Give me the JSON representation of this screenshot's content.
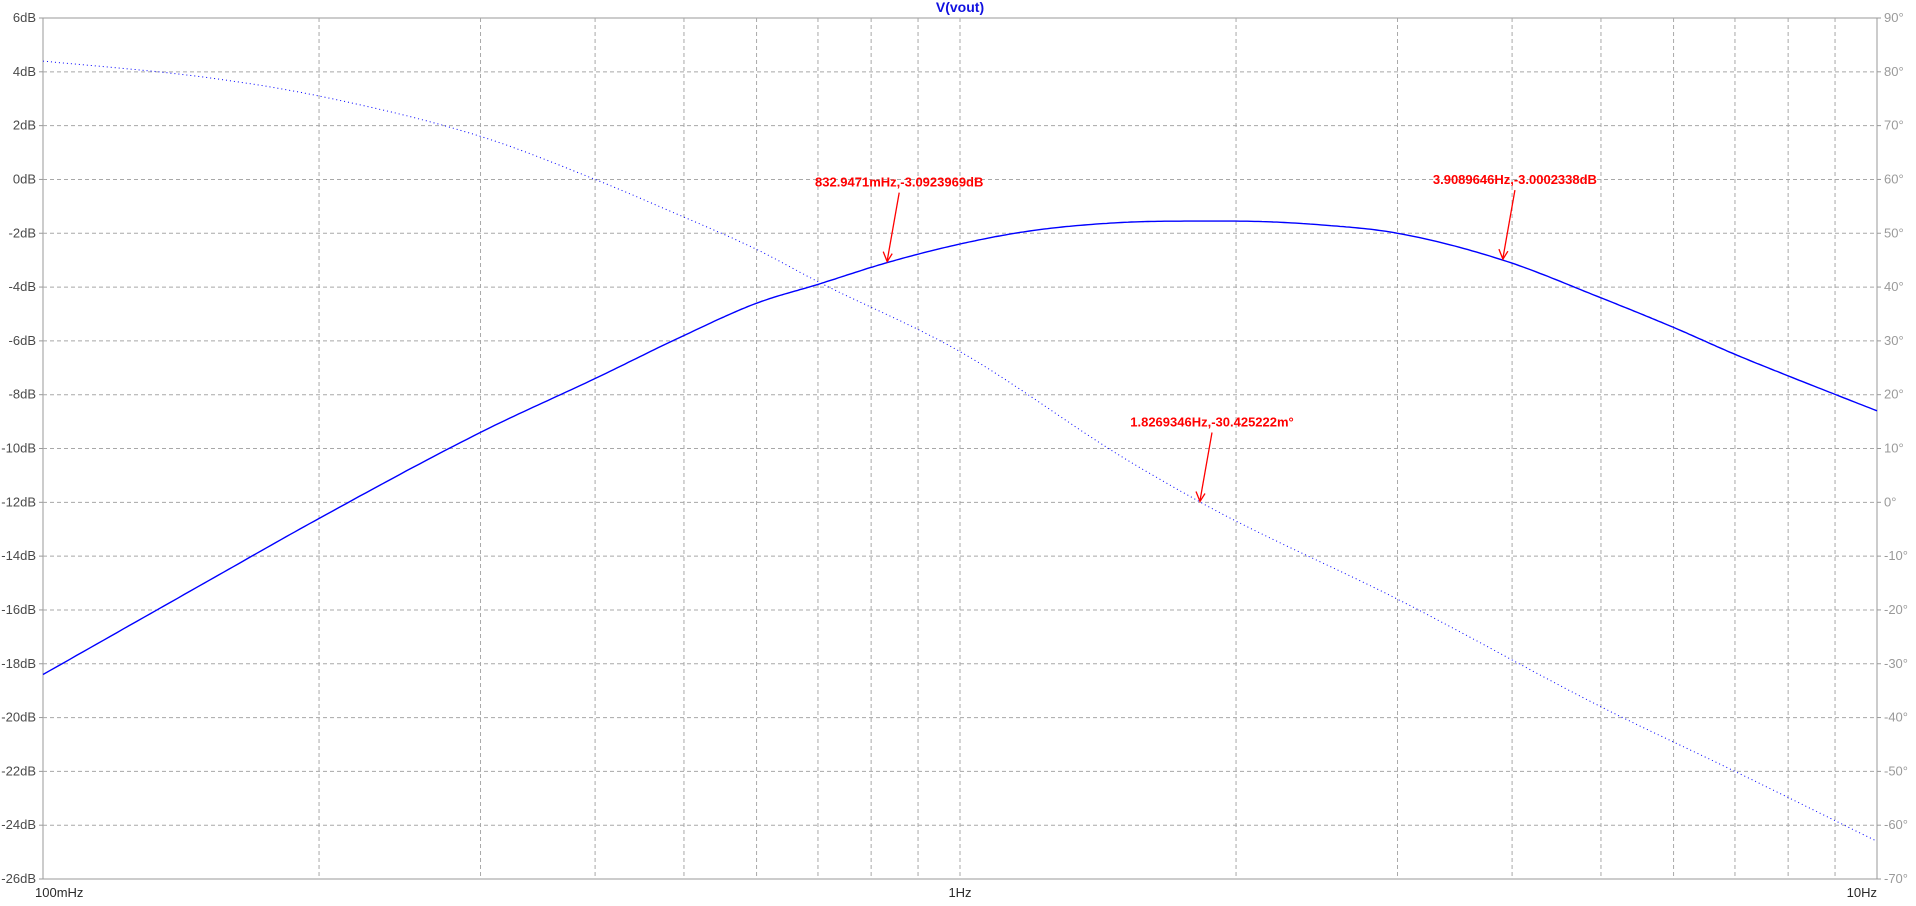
{
  "chart_data": {
    "type": "line",
    "title": "V(vout)",
    "x_scale": "log",
    "xlim_hz": [
      0.1,
      10
    ],
    "x_tick_labels": [
      "100mHz",
      "1Hz",
      "10Hz"
    ],
    "y_left": {
      "unit": "dB",
      "ylim": [
        -26,
        6
      ],
      "tick_labels": [
        "6dB",
        "4dB",
        "2dB",
        "0dB",
        "-2dB",
        "-4dB",
        "-6dB",
        "-8dB",
        "-10dB",
        "-12dB",
        "-14dB",
        "-16dB",
        "-18dB",
        "-20dB",
        "-22dB",
        "-24dB",
        "-26dB"
      ]
    },
    "y_right": {
      "unit": "°",
      "ylim": [
        -70,
        90
      ],
      "tick_labels": [
        "90°",
        "80°",
        "70°",
        "60°",
        "50°",
        "40°",
        "30°",
        "20°",
        "10°",
        "0°",
        "-10°",
        "-20°",
        "-30°",
        "-40°",
        "-50°",
        "-60°",
        "-70°"
      ]
    },
    "grid": true,
    "series": [
      {
        "color": "#0000ff",
        "style": "solid",
        "axis": "left",
        "x": [
          0.1,
          0.15,
          0.2,
          0.3,
          0.4,
          0.5,
          0.6,
          0.7,
          0.833,
          1.0,
          1.2,
          1.5,
          1.83,
          2.0,
          2.5,
          3.0,
          3.91,
          5.0,
          6.0,
          7.0,
          8.0,
          10.0
        ],
        "y": [
          -18.4,
          -15.0,
          -12.6,
          -9.4,
          -7.4,
          -5.8,
          -4.6,
          -3.9,
          -3.09,
          -2.4,
          -1.9,
          -1.6,
          -1.55,
          -1.55,
          -1.7,
          -2.0,
          -3.0,
          -4.4,
          -5.5,
          -6.5,
          -7.3,
          -8.6
        ]
      },
      {
        "color": "#0000ff",
        "style": "dotted",
        "axis": "right",
        "x": [
          0.1,
          0.15,
          0.2,
          0.3,
          0.4,
          0.5,
          0.6,
          0.7,
          1.0,
          1.5,
          1.83,
          2.0,
          3.0,
          5.0,
          7.0,
          10.0
        ],
        "y": [
          82.0,
          79.0,
          75.5,
          68.0,
          60.0,
          53.0,
          47.0,
          41.0,
          28.0,
          8.5,
          0.0,
          -3.5,
          -18.0,
          -38.0,
          -50.0,
          -63.0
        ]
      }
    ],
    "annotations": [
      {
        "text": "832.9471mHz,-3.0923969dB",
        "x": 0.8329471,
        "y": -3.0923969,
        "axis": "left"
      },
      {
        "text": "3.9089646Hz,-3.0002338dB",
        "x": 3.9089646,
        "y": -3.0002338,
        "axis": "left"
      },
      {
        "text": "1.8269346Hz,-30.425222m°",
        "x": 1.8269346,
        "y": -0.030425222,
        "axis": "right"
      }
    ]
  }
}
